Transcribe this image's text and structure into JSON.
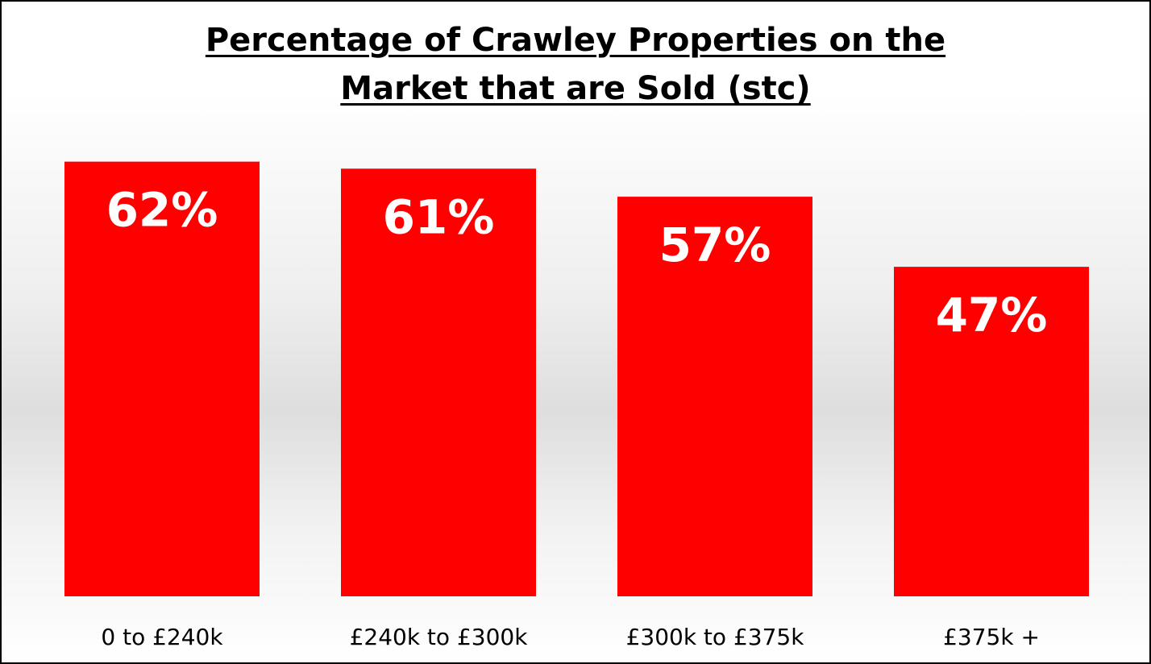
{
  "chart_data": {
    "type": "bar",
    "title_line1": "Percentage of Crawley Properties on the",
    "title_line2": "Market that are Sold (stc)",
    "categories": [
      "0 to £240k",
      "£240k to £300k",
      "£300k to £375k",
      "£375k +"
    ],
    "values": [
      62,
      61,
      57,
      47
    ],
    "value_labels": [
      "62%",
      "61%",
      "57%",
      "47%"
    ],
    "xlabel": "",
    "ylabel": "",
    "ylim": [
      0,
      100
    ],
    "grid": false,
    "legend": "none",
    "bar_color": "#ff0000",
    "label_color": "#ffffff"
  }
}
